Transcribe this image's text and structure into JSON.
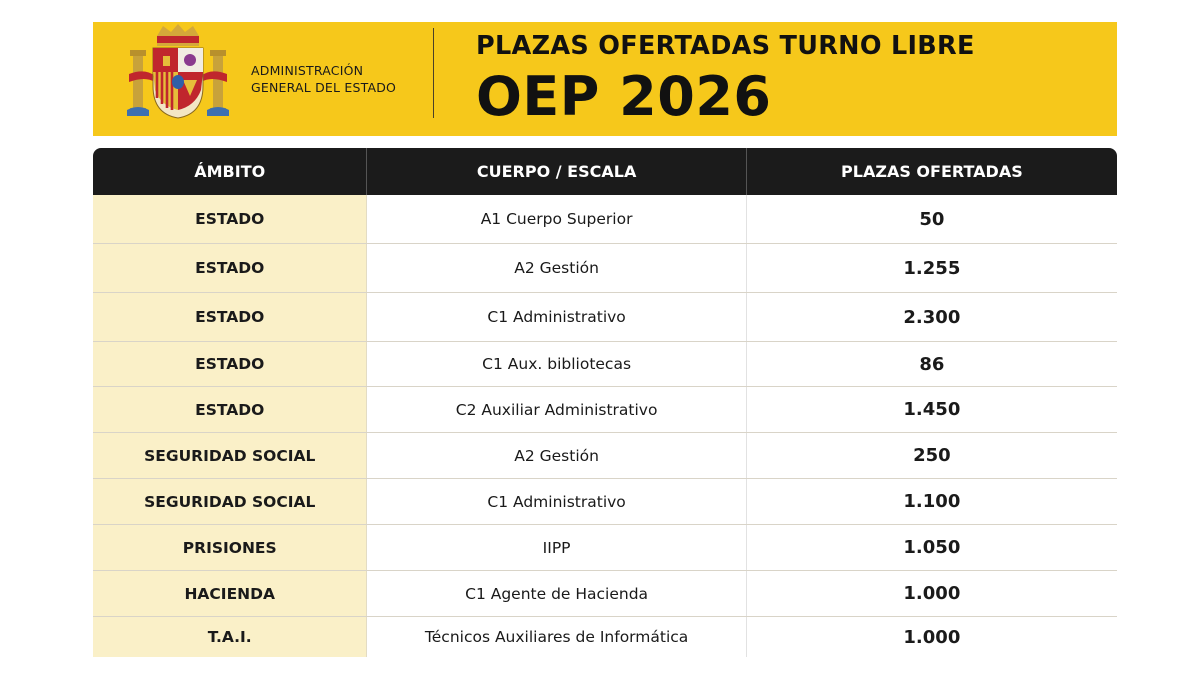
{
  "header": {
    "org_line1": "ADMINISTRACIÓN",
    "org_line2": "GENERAL DEL ESTADO",
    "title_top": "PLAZAS OFERTADAS TURNO LIBRE",
    "title_main": "OEP 2026",
    "logo_icon": "coat-of-arms-of-spain-icon"
  },
  "colors": {
    "banner": "#f6c81b",
    "table_header": "#1b1b1b",
    "ambito_column": "#faf0c8",
    "row_divider": "#d9d4c8"
  },
  "table": {
    "columns": [
      "ÁMBITO",
      "CUERPO / ESCALA",
      "PLAZAS OFERTADAS"
    ],
    "rows": [
      {
        "ambito": "ESTADO",
        "cuerpo": "A1 Cuerpo Superior",
        "plazas": "50"
      },
      {
        "ambito": "ESTADO",
        "cuerpo": "A2 Gestión",
        "plazas": "1.255"
      },
      {
        "ambito": "ESTADO",
        "cuerpo": "C1 Administrativo",
        "plazas": "2.300"
      },
      {
        "ambito": "ESTADO",
        "cuerpo": "C1 Aux. bibliotecas",
        "plazas": "86"
      },
      {
        "ambito": "ESTADO",
        "cuerpo": "C2 Auxiliar Administrativo",
        "plazas": "1.450"
      },
      {
        "ambito": "SEGURIDAD SOCIAL",
        "cuerpo": "A2 Gestión",
        "plazas": "250"
      },
      {
        "ambito": "SEGURIDAD SOCIAL",
        "cuerpo": "C1 Administrativo",
        "plazas": "1.100"
      },
      {
        "ambito": "PRISIONES",
        "cuerpo": "IIPP",
        "plazas": "1.050"
      },
      {
        "ambito": "HACIENDA",
        "cuerpo": "C1 Agente de Hacienda",
        "plazas": "1.000"
      },
      {
        "ambito": "T.A.I.",
        "cuerpo": "Técnicos Auxiliares de Informática",
        "plazas": "1.000"
      }
    ]
  }
}
